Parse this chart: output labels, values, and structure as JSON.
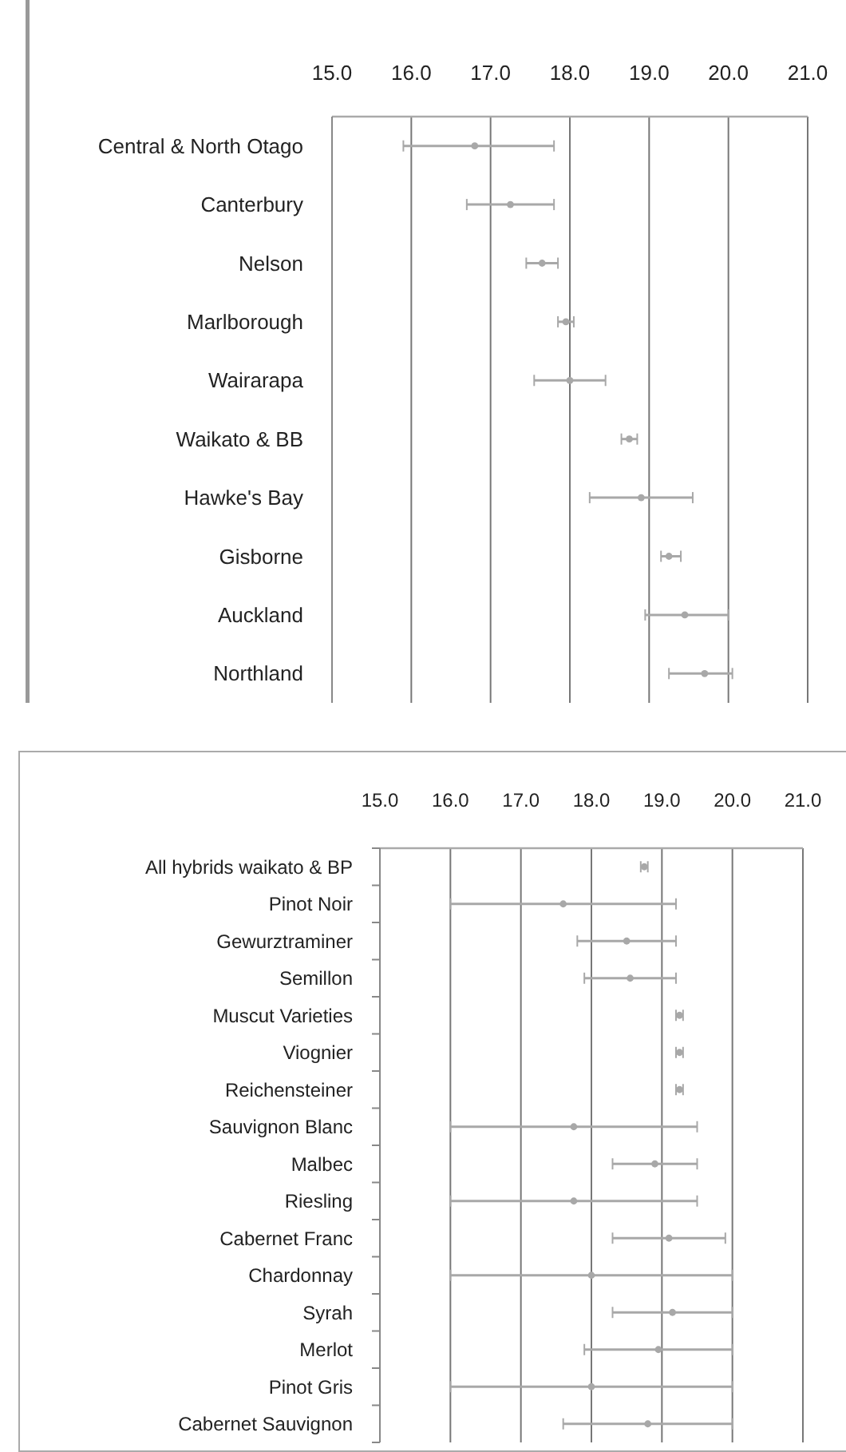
{
  "chart_data": [
    {
      "type": "scatter",
      "orientation": "horizontal",
      "marker": "circle",
      "color": "#a8a8a8",
      "grid": "x",
      "xlim": [
        15,
        21
      ],
      "xticks": [
        {
          "value": 15,
          "label": "15.0"
        },
        {
          "value": 16,
          "label": "16.0"
        },
        {
          "value": 17,
          "label": "17.0"
        },
        {
          "value": 18,
          "label": "18.0"
        },
        {
          "value": 19,
          "label": "19.0"
        },
        {
          "value": 20,
          "label": "20.0"
        },
        {
          "value": 21,
          "label": "21.0"
        }
      ],
      "categories": [
        "Central & North Otago",
        "Canterbury",
        "Nelson",
        "Marlborough",
        "Wairarapa",
        "Waikato & BB",
        "Hawke's Bay",
        "Gisborne",
        "Auckland",
        "Northland"
      ],
      "values": [
        16.8,
        17.25,
        17.65,
        17.95,
        18.0,
        18.75,
        18.9,
        19.25,
        19.45,
        19.7
      ],
      "errors": [
        [
          15.9,
          17.8
        ],
        [
          16.7,
          17.8
        ],
        [
          17.45,
          17.85
        ],
        [
          17.85,
          18.05
        ],
        [
          17.55,
          18.45
        ],
        [
          18.65,
          18.85
        ],
        [
          18.25,
          19.55
        ],
        [
          19.15,
          19.4
        ],
        [
          18.95,
          20.0
        ],
        [
          19.25,
          20.05
        ]
      ]
    },
    {
      "type": "scatter",
      "orientation": "horizontal",
      "marker": "circle",
      "color": "#a8a8a8",
      "grid": "x",
      "xlim": [
        15,
        21
      ],
      "xticks": [
        {
          "value": 15,
          "label": "15.0"
        },
        {
          "value": 16,
          "label": "16.0"
        },
        {
          "value": 17,
          "label": "17.0"
        },
        {
          "value": 18,
          "label": "18.0"
        },
        {
          "value": 19,
          "label": "19.0"
        },
        {
          "value": 20,
          "label": "20.0"
        },
        {
          "value": 21,
          "label": "21.0"
        }
      ],
      "categories": [
        "All hybrids waikato & BP",
        "Pinot Noir",
        "Gewurztraminer",
        "Semillon",
        "Muscut Varieties",
        "Viognier",
        "Reichensteiner",
        "Sauvignon Blanc",
        "Malbec",
        "Riesling",
        "Cabernet Franc",
        "Chardonnay",
        "Syrah",
        "Merlot",
        "Pinot Gris",
        "Cabernet Sauvignon"
      ],
      "values": [
        18.75,
        17.6,
        18.5,
        18.55,
        19.25,
        19.25,
        19.25,
        17.75,
        18.9,
        17.75,
        19.1,
        18.0,
        19.15,
        18.95,
        18.0,
        18.8
      ],
      "errors": [
        [
          18.7,
          18.8
        ],
        [
          16.0,
          19.2
        ],
        [
          17.8,
          19.2
        ],
        [
          17.9,
          19.2
        ],
        [
          19.2,
          19.3
        ],
        [
          19.2,
          19.3
        ],
        [
          19.2,
          19.3
        ],
        [
          16.0,
          19.5
        ],
        [
          18.3,
          19.5
        ],
        [
          16.0,
          19.5
        ],
        [
          18.3,
          19.9
        ],
        [
          16.0,
          20.0
        ],
        [
          18.3,
          20.0
        ],
        [
          17.9,
          20.0
        ],
        [
          16.0,
          20.0
        ],
        [
          17.6,
          20.0
        ]
      ]
    }
  ]
}
